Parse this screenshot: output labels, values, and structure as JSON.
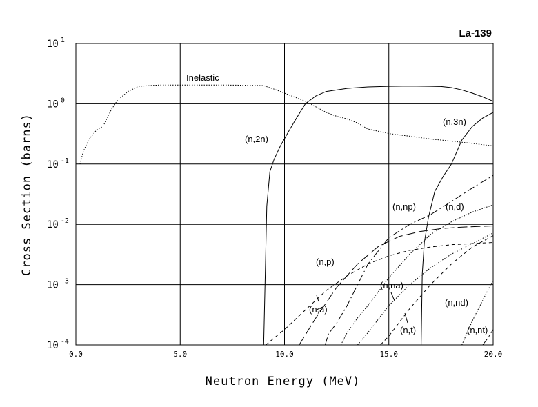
{
  "chart_data": {
    "type": "line",
    "title": "La-139",
    "xlabel": "Neutron Energy (MeV)",
    "ylabel": "Cross Section (barns)",
    "xscale": "linear",
    "yscale": "log",
    "xlim": [
      0,
      20
    ],
    "ylim": [
      0.0001,
      10
    ],
    "x_ticks": [
      "0.0",
      "5.0",
      "10.0",
      "15.0",
      "20.0"
    ],
    "y_ticks": [
      {
        "base": "10",
        "exp": "1"
      },
      {
        "base": "10",
        "exp": "0"
      },
      {
        "base": "10",
        "exp": "-1"
      },
      {
        "base": "10",
        "exp": "-2"
      },
      {
        "base": "10",
        "exp": "-3"
      },
      {
        "base": "10",
        "exp": "-4"
      }
    ],
    "series": [
      {
        "name": "Inelastic",
        "style": "dotted",
        "x": [
          0.2,
          0.35,
          0.6,
          1.0,
          1.3,
          1.5,
          1.7,
          2.0,
          2.5,
          3.0,
          4.0,
          5.0,
          6.0,
          7.0,
          8.0,
          9.0,
          9.5,
          10.0,
          11.0,
          12.0,
          12.5,
          13.0,
          13.5,
          14.0,
          15.0,
          16.0,
          17.0,
          18.0,
          19.0,
          20.0
        ],
        "y": [
          0.1,
          0.16,
          0.25,
          0.37,
          0.42,
          0.58,
          0.8,
          1.15,
          1.6,
          1.95,
          2.05,
          2.05,
          2.05,
          2.05,
          2.03,
          2.0,
          1.75,
          1.5,
          1.1,
          0.72,
          0.62,
          0.56,
          0.48,
          0.38,
          0.32,
          0.29,
          0.26,
          0.24,
          0.22,
          0.2
        ]
      },
      {
        "name": "(n,2n)",
        "style": "solid",
        "x": [
          9.0,
          9.15,
          9.3,
          9.5,
          9.8,
          10.2,
          10.6,
          11.0,
          11.5,
          12.0,
          13.0,
          14.0,
          15.0,
          16.0,
          17.0,
          17.5,
          18.0,
          18.5,
          19.0,
          19.5,
          20.0
        ],
        "y": [
          0.0001,
          0.02,
          0.075,
          0.12,
          0.2,
          0.35,
          0.6,
          1.0,
          1.35,
          1.6,
          1.8,
          1.9,
          1.95,
          1.97,
          1.95,
          1.93,
          1.85,
          1.7,
          1.5,
          1.3,
          1.1
        ]
      },
      {
        "name": "(n,3n)",
        "style": "solid",
        "x": [
          16.55,
          16.6,
          16.7,
          16.9,
          17.2,
          17.6,
          18.0,
          18.5,
          19.0,
          19.5,
          20.0
        ],
        "y": [
          0.0001,
          0.0015,
          0.005,
          0.013,
          0.035,
          0.062,
          0.1,
          0.25,
          0.42,
          0.58,
          0.72
        ]
      },
      {
        "name": "(n,p)",
        "style": "long-dash",
        "x": [
          10.7,
          11.5,
          12.5,
          13.5,
          14.5,
          15.5,
          16.5,
          17.5,
          18.5,
          19.5,
          20.0
        ],
        "y": [
          0.0001,
          0.00028,
          0.0009,
          0.0022,
          0.0043,
          0.0063,
          0.0076,
          0.0085,
          0.009,
          0.0093,
          0.0094
        ]
      },
      {
        "name": "(n,a)",
        "style": "short-dash",
        "x": [
          9.1,
          10.0,
          11.0,
          12.0,
          13.0,
          14.0,
          15.0,
          16.0,
          17.0,
          18.0,
          19.0,
          20.0
        ],
        "y": [
          0.0001,
          0.00018,
          0.00038,
          0.0008,
          0.0014,
          0.0022,
          0.003,
          0.0037,
          0.0042,
          0.0046,
          0.0048,
          0.005
        ]
      },
      {
        "name": "(n,np)",
        "style": "dash-dot",
        "x": [
          11.95,
          12.1,
          12.5,
          13.0,
          14.0,
          15.0,
          16.0,
          17.0,
          18.0,
          19.0,
          20.0
        ],
        "y": [
          0.0001,
          0.00015,
          0.00023,
          0.00045,
          0.0022,
          0.006,
          0.01,
          0.0145,
          0.024,
          0.04,
          0.065
        ]
      },
      {
        "name": "(n,d)",
        "style": "dotted",
        "x": [
          12.7,
          13.0,
          13.5,
          14.0,
          15.0,
          16.0,
          17.0,
          18.0,
          19.0,
          20.0
        ],
        "y": [
          0.0001,
          0.00016,
          0.00028,
          0.00045,
          0.0013,
          0.0032,
          0.0068,
          0.011,
          0.016,
          0.021
        ]
      },
      {
        "name": "(n,na)",
        "style": "dotted",
        "x": [
          13.5,
          14.0,
          15.0,
          16.0,
          17.0,
          18.0,
          19.0,
          20.0
        ],
        "y": [
          0.0001,
          0.00016,
          0.00045,
          0.001,
          0.0019,
          0.0032,
          0.0048,
          0.0072
        ]
      },
      {
        "name": "(n,t)",
        "style": "short-dash",
        "x": [
          14.6,
          15.0,
          16.0,
          17.0,
          18.0,
          19.0,
          20.0
        ],
        "y": [
          0.0001,
          0.00014,
          0.0004,
          0.001,
          0.0022,
          0.0042,
          0.0065
        ]
      },
      {
        "name": "(n,nd)",
        "style": "dotted",
        "x": [
          18.5,
          19.0,
          19.5,
          20.0
        ],
        "y": [
          0.0001,
          0.00025,
          0.00055,
          0.0012
        ]
      },
      {
        "name": "(n,nt)",
        "style": "dash-dot",
        "x": [
          19.5,
          19.75,
          20.0
        ],
        "y": [
          0.0001,
          0.00013,
          0.00018
        ]
      }
    ],
    "labels": [
      {
        "text": "Inelastic",
        "series": "Inelastic"
      },
      {
        "text": "(n,2n)",
        "series": "(n,2n)"
      },
      {
        "text": "(n,3n)",
        "series": "(n,3n)"
      },
      {
        "text": "(n,np)",
        "series": "(n,np)"
      },
      {
        "text": "(n,d)",
        "series": "(n,d)"
      },
      {
        "text": "(n,p)",
        "series": "(n,p)"
      },
      {
        "text": "(n,na)",
        "series": "(n,na)"
      },
      {
        "text": "(n,a)",
        "series": "(n,a)"
      },
      {
        "text": "(n,t)",
        "series": "(n,t)"
      },
      {
        "text": "(n,nd)",
        "series": "(n,nd)"
      },
      {
        "text": "(n,nt)",
        "series": "(n,nt)"
      }
    ]
  }
}
